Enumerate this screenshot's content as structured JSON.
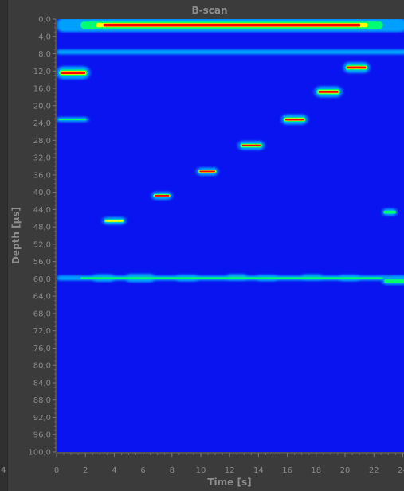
{
  "chart_data": {
    "type": "heatmap",
    "title": "B-scan",
    "xlabel": "Time [s]",
    "ylabel": "Depth [µs]",
    "xlim": [
      0,
      24
    ],
    "ylim": [
      0,
      100
    ],
    "x_ticks": [
      0,
      2,
      4,
      6,
      8,
      10,
      12,
      14,
      16,
      18,
      20,
      22,
      24
    ],
    "x_tick_labels": [
      "0",
      "2",
      "4",
      "6",
      "8",
      "10",
      "12",
      "14",
      "16",
      "18",
      "20",
      "22",
      "24"
    ],
    "y_ticks": [
      0,
      4,
      8,
      12,
      16,
      20,
      24,
      28,
      32,
      36,
      40,
      44,
      48,
      52,
      56,
      60,
      64,
      68,
      72,
      76,
      80,
      84,
      88,
      92,
      96,
      100
    ],
    "y_tick_labels": [
      "0,0",
      "4,0",
      "8,0",
      "12,0",
      "16,0",
      "20,0",
      "24,0",
      "28,0",
      "32,0",
      "36,0",
      "40,0",
      "44,0",
      "48,0",
      "52,0",
      "56,0",
      "60,0",
      "64,0",
      "68,0",
      "72,0",
      "76,0",
      "80,0",
      "84,0",
      "88,0",
      "92,0",
      "96,0",
      "100,0"
    ],
    "edge_label": "4",
    "colormap": [
      "#0018ff",
      "#00a0ff",
      "#00ff70",
      "#ffff00",
      "#ff0000"
    ],
    "background_color": "#0a14f0",
    "grid": false,
    "reflections": [
      {
        "x_start": 0,
        "x_end": 24.3,
        "depth": 1.4,
        "thickness": 2.6,
        "intensity": 1.0
      },
      {
        "x_start": 0,
        "x_end": 24.3,
        "depth": 7.6,
        "thickness": 0.8,
        "intensity": 0.3
      },
      {
        "x_start": 0,
        "x_end": 2.3,
        "depth": 12.4,
        "thickness": 2.4,
        "intensity": 1.0
      },
      {
        "x_start": 0,
        "x_end": 2.2,
        "depth": 23.2,
        "thickness": 0.7,
        "intensity": 0.55
      },
      {
        "x_start": 3.2,
        "x_end": 4.8,
        "depth": 46.6,
        "thickness": 1.4,
        "intensity": 0.6
      },
      {
        "x_start": 6.6,
        "x_end": 8.0,
        "depth": 40.8,
        "thickness": 1.4,
        "intensity": 0.8
      },
      {
        "x_start": 9.7,
        "x_end": 11.2,
        "depth": 35.2,
        "thickness": 1.4,
        "intensity": 0.85
      },
      {
        "x_start": 12.6,
        "x_end": 14.4,
        "depth": 29.2,
        "thickness": 1.6,
        "intensity": 0.9
      },
      {
        "x_start": 15.6,
        "x_end": 17.4,
        "depth": 23.2,
        "thickness": 1.8,
        "intensity": 0.95
      },
      {
        "x_start": 17.9,
        "x_end": 19.8,
        "depth": 16.8,
        "thickness": 2.0,
        "intensity": 1.0
      },
      {
        "x_start": 19.9,
        "x_end": 21.7,
        "depth": 11.2,
        "thickness": 2.0,
        "intensity": 1.0
      },
      {
        "x_start": 2.5,
        "x_end": 4.0,
        "depth": 59.8,
        "thickness": 1.2,
        "intensity": 0.85
      },
      {
        "x_start": 4.8,
        "x_end": 6.8,
        "depth": 59.8,
        "thickness": 1.4,
        "intensity": 0.9
      },
      {
        "x_start": 8.3,
        "x_end": 9.8,
        "depth": 59.8,
        "thickness": 1.0,
        "intensity": 0.75
      },
      {
        "x_start": 11.8,
        "x_end": 13.2,
        "depth": 59.6,
        "thickness": 1.0,
        "intensity": 0.6
      },
      {
        "x_start": 13.9,
        "x_end": 15.3,
        "depth": 59.8,
        "thickness": 1.0,
        "intensity": 0.55
      },
      {
        "x_start": 17.0,
        "x_end": 18.4,
        "depth": 59.6,
        "thickness": 0.9,
        "intensity": 0.55
      },
      {
        "x_start": 19.6,
        "x_end": 21.0,
        "depth": 59.8,
        "thickness": 1.0,
        "intensity": 0.55
      },
      {
        "x_start": 0,
        "x_end": 24.3,
        "depth": 59.8,
        "thickness": 0.8,
        "intensity": 0.5
      },
      {
        "x_start": 22.6,
        "x_end": 23.6,
        "depth": 44.6,
        "thickness": 1.4,
        "intensity": 0.5
      },
      {
        "x_start": 22.6,
        "x_end": 24.3,
        "depth": 60.5,
        "thickness": 1.4,
        "intensity": 0.55
      }
    ]
  }
}
